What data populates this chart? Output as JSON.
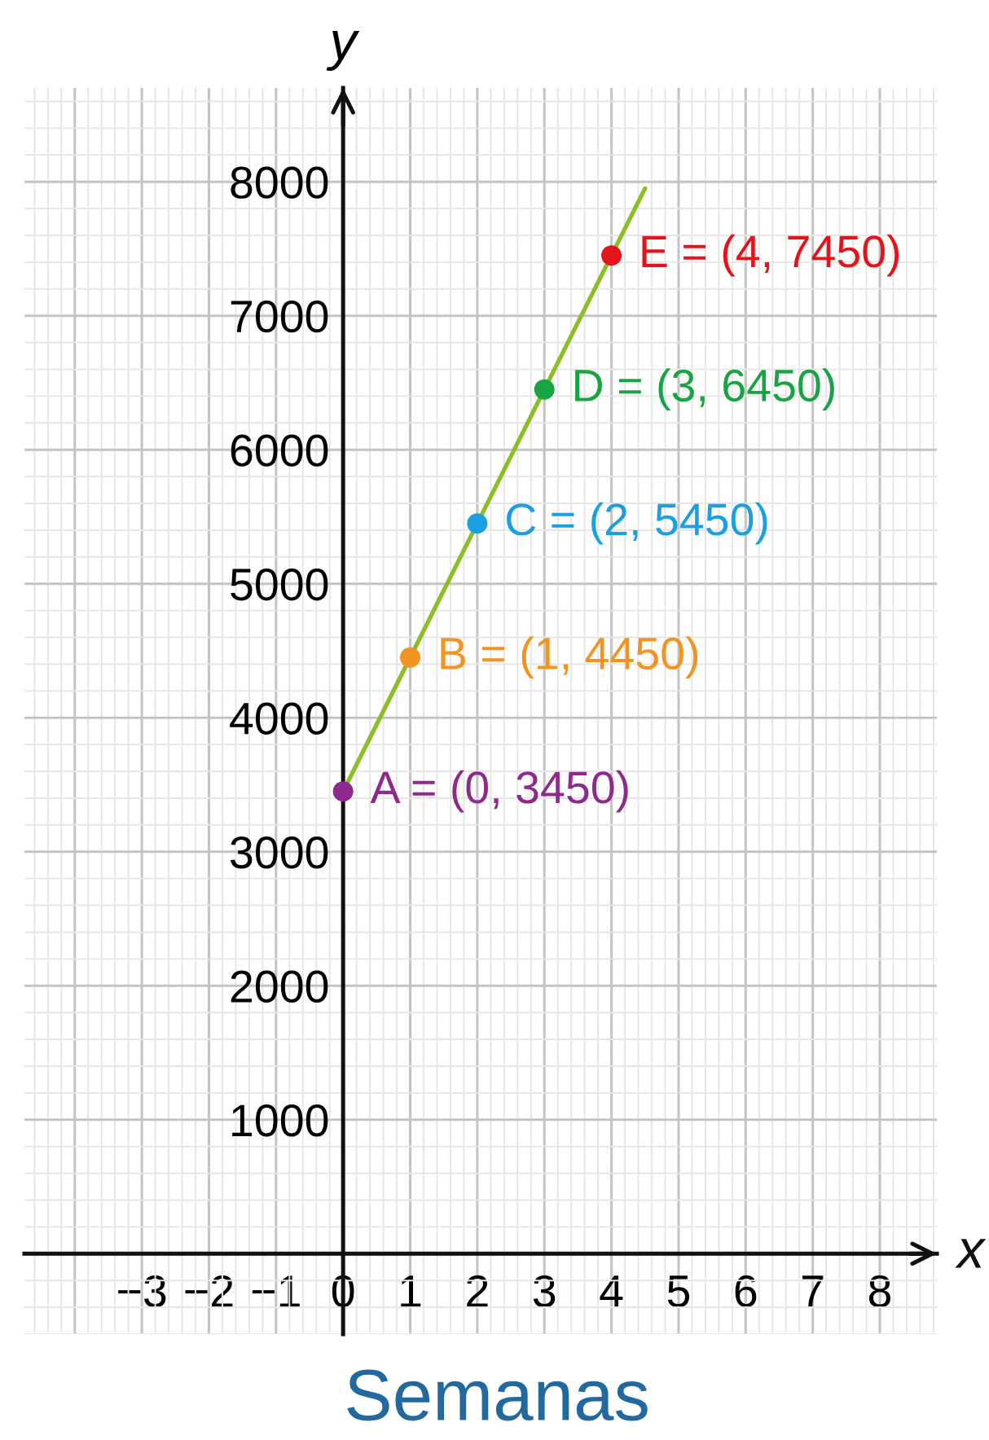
{
  "chart_data": {
    "type": "line",
    "xlabel": "Semanas",
    "ylabel": "y",
    "annotations": [
      "x",
      {
        "text": "A = (0, 3450)",
        "x": 0,
        "y": 3450
      },
      {
        "text": "B = (1, 4450)",
        "x": 1,
        "y": 4450
      },
      {
        "text": "C = (2, 5450)",
        "x": 2,
        "y": 5450
      },
      {
        "text": "D = (3, 6450)",
        "x": 3,
        "y": 6450
      },
      {
        "text": "E = (4, 7450)",
        "x": 4,
        "y": 7450
      }
    ],
    "xlim": [
      -4.75,
      8.85
    ],
    "ylim": [
      -600,
      8700
    ],
    "xticks": [
      {
        "value": -4,
        "label": null
      },
      {
        "value": -3,
        "label": "−3"
      },
      {
        "value": -2,
        "label": "−2"
      },
      {
        "value": -1,
        "label": "−1"
      },
      0,
      1,
      2,
      3,
      4,
      5,
      6,
      7,
      8
    ],
    "yticks": [
      1000,
      2000,
      3000,
      4000,
      5000,
      6000,
      7000,
      8000
    ],
    "grid": true,
    "series": [
      {
        "type": "line",
        "color": "#8cbf26",
        "line_style": "solid",
        "x": [
          0,
          4.5
        ],
        "values": [
          3450,
          7950
        ]
      },
      {
        "type": "scatter",
        "marker": "circle",
        "x": [
          0,
          1,
          2,
          3,
          4
        ],
        "values": [
          3450,
          4450,
          5450,
          6450,
          7450
        ],
        "colors": [
          "#8e2a8c",
          "#f39320",
          "#1aa0e0",
          "#18a442",
          "#e3141c"
        ]
      }
    ]
  }
}
